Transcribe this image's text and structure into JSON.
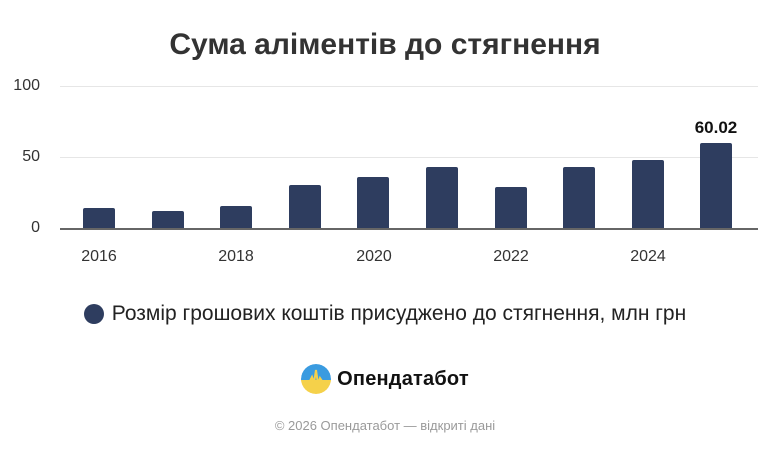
{
  "chart_data": {
    "type": "bar",
    "title": "Сума аліментів до стягнення",
    "xlabel": "",
    "ylabel": "",
    "categories": [
      "2016",
      "2017",
      "2018",
      "2019",
      "2020",
      "2021",
      "2022",
      "2023",
      "2024",
      "2025"
    ],
    "series": [
      {
        "name": "Розмір грошових коштів присуджено до стягнення, млн грн",
        "color": "#2e3d5f",
        "values": [
          14.4,
          11.8,
          15.3,
          30.6,
          35.7,
          43.1,
          28.7,
          43.1,
          48.2,
          60.02
        ]
      }
    ],
    "x_tick_labels": [
      "2016",
      "2018",
      "2020",
      "2022",
      "2024"
    ],
    "y_ticks": [
      0,
      50,
      100
    ],
    "ylim": [
      0,
      100
    ],
    "grid": true,
    "legend_position": "bottom",
    "annotations": [
      {
        "category": "2025",
        "text": "60.02"
      }
    ]
  },
  "title": "Сума аліментів до стягнення",
  "y_axis": {
    "ticks": [
      "100",
      "50",
      "0"
    ]
  },
  "x_axis": {
    "ticks": [
      "2016",
      "2018",
      "2020",
      "2022",
      "2024"
    ]
  },
  "data_label": "60.02",
  "legend": {
    "label": "Розмір грошових коштів присуджено до стягнення, млн грн",
    "color": "#2e3d5f"
  },
  "brand": {
    "name": "Опендатабот"
  },
  "footer": {
    "text": "© 2026 Опендатабот — відкриті дані"
  }
}
